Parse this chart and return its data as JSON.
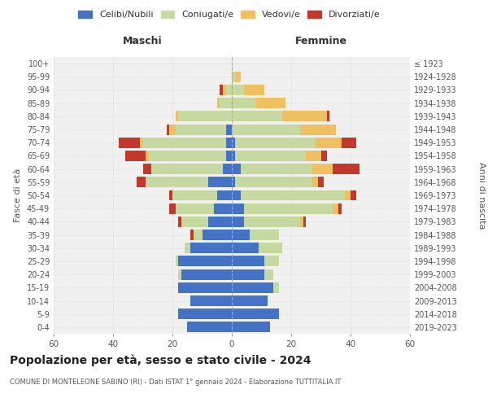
{
  "age_groups": [
    "0-4",
    "5-9",
    "10-14",
    "15-19",
    "20-24",
    "25-29",
    "30-34",
    "35-39",
    "40-44",
    "45-49",
    "50-54",
    "55-59",
    "60-64",
    "65-69",
    "70-74",
    "75-79",
    "80-84",
    "85-89",
    "90-94",
    "95-99",
    "100+"
  ],
  "birth_years": [
    "2019-2023",
    "2014-2018",
    "2009-2013",
    "2004-2008",
    "1999-2003",
    "1994-1998",
    "1989-1993",
    "1984-1988",
    "1979-1983",
    "1974-1978",
    "1969-1973",
    "1964-1968",
    "1959-1963",
    "1954-1958",
    "1949-1953",
    "1944-1948",
    "1939-1943",
    "1934-1938",
    "1929-1933",
    "1924-1928",
    "≤ 1923"
  ],
  "male": {
    "celibe": [
      15,
      18,
      14,
      18,
      17,
      18,
      14,
      10,
      8,
      6,
      5,
      8,
      3,
      2,
      2,
      2,
      0,
      0,
      0,
      0,
      0
    ],
    "coniugato": [
      0,
      0,
      0,
      0,
      1,
      1,
      2,
      3,
      9,
      13,
      15,
      21,
      24,
      26,
      28,
      17,
      18,
      4,
      2,
      0,
      0
    ],
    "vedovo": [
      0,
      0,
      0,
      0,
      0,
      0,
      0,
      0,
      0,
      0,
      0,
      0,
      0,
      1,
      1,
      2,
      1,
      1,
      1,
      0,
      0
    ],
    "divorziato": [
      0,
      0,
      0,
      0,
      0,
      0,
      0,
      1,
      1,
      2,
      1,
      3,
      3,
      7,
      7,
      1,
      0,
      0,
      1,
      0,
      0
    ]
  },
  "female": {
    "nubile": [
      13,
      16,
      12,
      14,
      11,
      11,
      9,
      6,
      4,
      4,
      3,
      1,
      3,
      1,
      1,
      0,
      0,
      0,
      0,
      0,
      0
    ],
    "coniugata": [
      0,
      0,
      0,
      2,
      3,
      5,
      8,
      10,
      19,
      30,
      35,
      26,
      24,
      24,
      27,
      23,
      17,
      8,
      4,
      1,
      0
    ],
    "vedova": [
      0,
      0,
      0,
      0,
      0,
      0,
      0,
      0,
      1,
      2,
      2,
      2,
      7,
      5,
      9,
      12,
      15,
      10,
      7,
      2,
      0
    ],
    "divorziata": [
      0,
      0,
      0,
      0,
      0,
      0,
      0,
      0,
      1,
      1,
      2,
      2,
      9,
      2,
      5,
      0,
      1,
      0,
      0,
      0,
      0
    ]
  },
  "colors": {
    "celibe": "#4472C4",
    "coniugato": "#C5D9A0",
    "vedovo": "#F0C060",
    "divorziato": "#C0392B"
  },
  "title": "Popolazione per età, sesso e stato civile - 2024",
  "subtitle": "COMUNE DI MONTELEONE SABINO (RI) - Dati ISTAT 1° gennaio 2024 - Elaborazione TUTTITALIA.IT",
  "xlim": 60,
  "xlabel_left": "Maschi",
  "xlabel_right": "Femmine",
  "ylabel_left": "Fasce di età",
  "ylabel_right": "Anni di nascita",
  "bg_color": "#ffffff",
  "plot_bg": "#f0f0f0",
  "grid_color": "#dddddd"
}
